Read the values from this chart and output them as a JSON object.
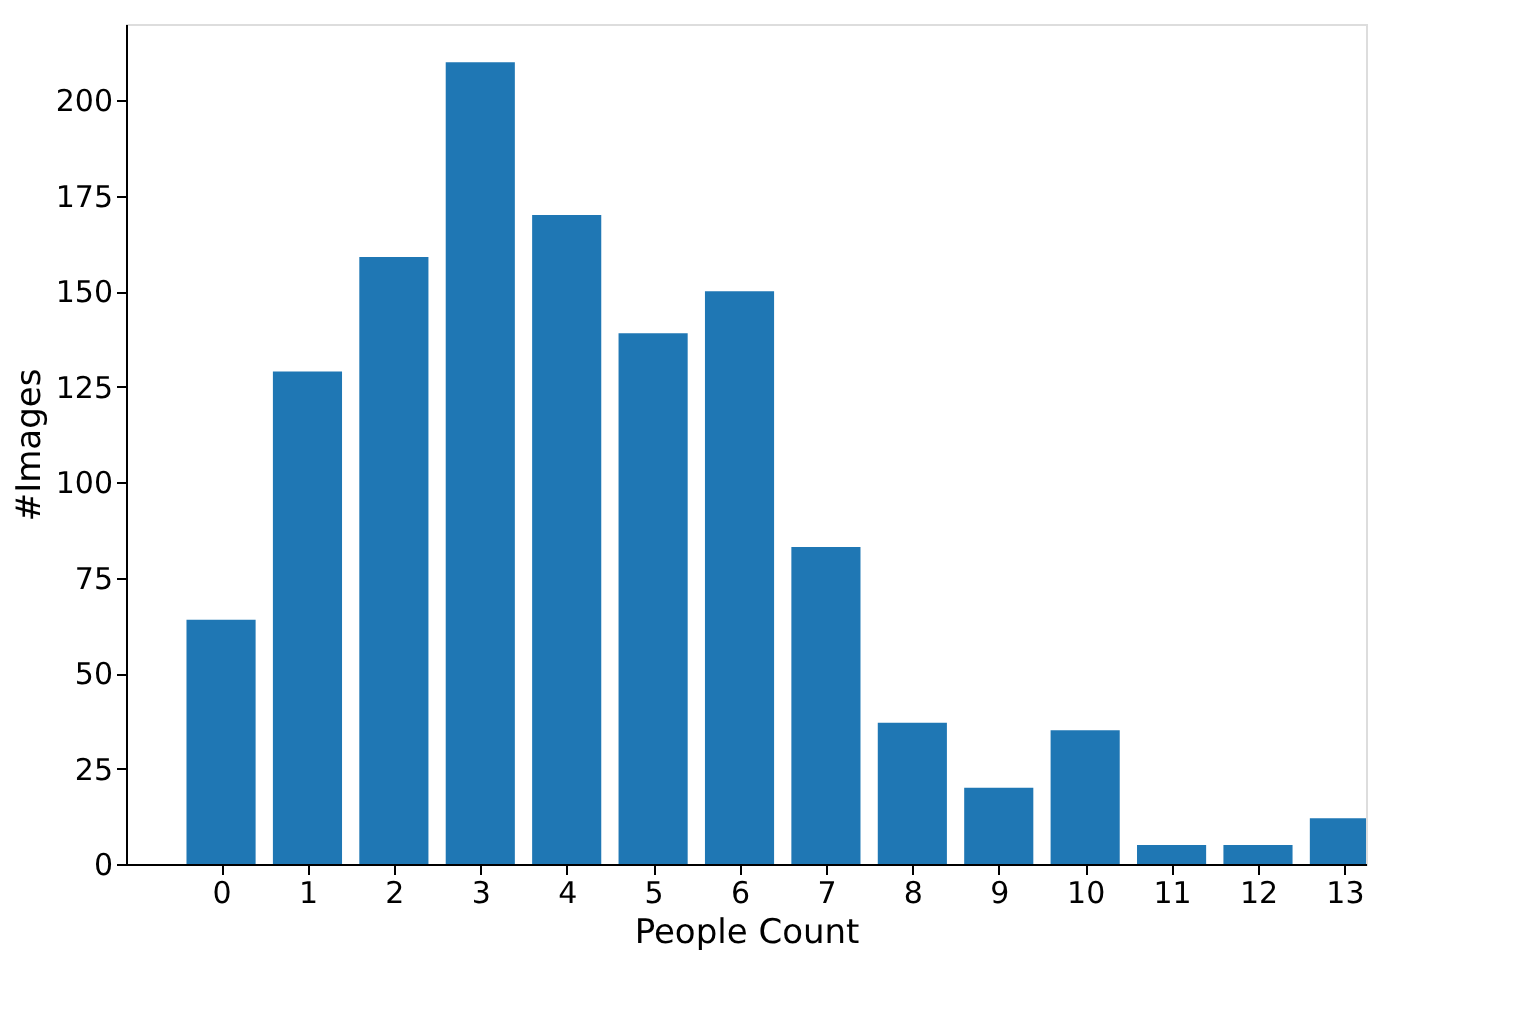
{
  "chart_data": {
    "type": "bar",
    "xlabel": "People Count",
    "ylabel": "#Images",
    "x": [
      0,
      1,
      2,
      3,
      4,
      5,
      6,
      7,
      8,
      9,
      10,
      11,
      12,
      13
    ],
    "values": [
      64,
      129,
      159,
      210,
      170,
      139,
      150,
      83,
      37,
      20,
      35,
      5,
      5,
      12
    ],
    "color": "#1f77b4",
    "xlim": [
      -1.1,
      13.25
    ],
    "xticks": [
      0,
      1,
      2,
      3,
      4,
      5,
      6,
      7,
      8,
      9,
      10,
      11,
      12,
      13
    ],
    "ylim": [
      0,
      220
    ],
    "yticks": [
      0,
      25,
      50,
      75,
      100,
      125,
      150,
      175,
      200
    ],
    "grid": false
  }
}
